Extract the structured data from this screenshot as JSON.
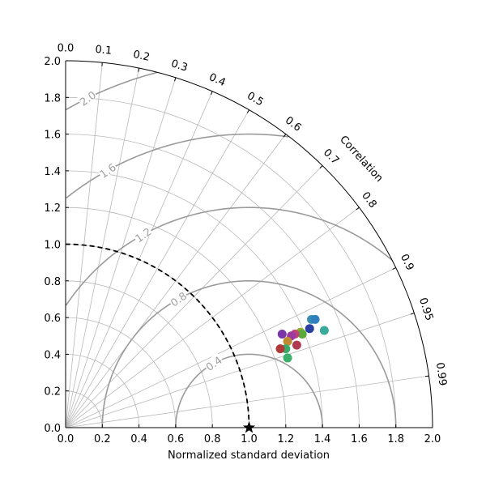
{
  "chart_data": {
    "type": "scatter",
    "subtype": "taylor-diagram",
    "xlabel": "Normalized standard deviation",
    "correlation_label": "Correlation",
    "std_range": [
      0,
      2.0
    ],
    "std_ticks": [
      "0.0",
      "0.2",
      "0.4",
      "0.6",
      "0.8",
      "1.0",
      "1.2",
      "1.4",
      "1.6",
      "1.8",
      "2.0"
    ],
    "correlation_ticks": [
      {
        "value": 0.0,
        "label": "0.0"
      },
      {
        "value": 0.1,
        "label": "0.1"
      },
      {
        "value": 0.2,
        "label": "0.2"
      },
      {
        "value": 0.3,
        "label": "0.3"
      },
      {
        "value": 0.4,
        "label": "0.4"
      },
      {
        "value": 0.5,
        "label": "0.5"
      },
      {
        "value": 0.6,
        "label": "0.6"
      },
      {
        "value": 0.7,
        "label": "0.7"
      },
      {
        "value": 0.8,
        "label": "0.8"
      },
      {
        "value": 0.9,
        "label": "0.9"
      },
      {
        "value": 0.95,
        "label": "0.95"
      },
      {
        "value": 0.99,
        "label": "0.99"
      }
    ],
    "grid": true,
    "reference": {
      "std": 1.0,
      "marker": "star",
      "dashed_arc_radius": 1.0
    },
    "rmsd_contours": [
      {
        "value": 0.4,
        "label": "0.4"
      },
      {
        "value": 0.8,
        "label": "0.8"
      },
      {
        "value": 1.2,
        "label": "1.2"
      },
      {
        "value": 1.6,
        "label": "1.6"
      },
      {
        "value": 2.0,
        "label": "2.0"
      }
    ],
    "points": [
      {
        "x": 1.34,
        "y": 0.59,
        "color": "#3a8fb0"
      },
      {
        "x": 1.36,
        "y": 0.59,
        "color": "#2f7fbf"
      },
      {
        "x": 1.41,
        "y": 0.53,
        "color": "#3aaa9a"
      },
      {
        "x": 1.33,
        "y": 0.54,
        "color": "#2a3fa0"
      },
      {
        "x": 1.28,
        "y": 0.52,
        "color": "#8fa82a"
      },
      {
        "x": 1.29,
        "y": 0.51,
        "color": "#5aaa3a"
      },
      {
        "x": 1.25,
        "y": 0.51,
        "color": "#c0407a"
      },
      {
        "x": 1.23,
        "y": 0.5,
        "color": "#9a3aa0"
      },
      {
        "x": 1.18,
        "y": 0.51,
        "color": "#7a35a8"
      },
      {
        "x": 1.21,
        "y": 0.47,
        "color": "#c08a30"
      },
      {
        "x": 1.26,
        "y": 0.45,
        "color": "#b03a50"
      },
      {
        "x": 1.2,
        "y": 0.43,
        "color": "#3aaa6a"
      },
      {
        "x": 1.17,
        "y": 0.43,
        "color": "#b03a3a"
      },
      {
        "x": 1.21,
        "y": 0.38,
        "color": "#3ab06a"
      }
    ]
  }
}
